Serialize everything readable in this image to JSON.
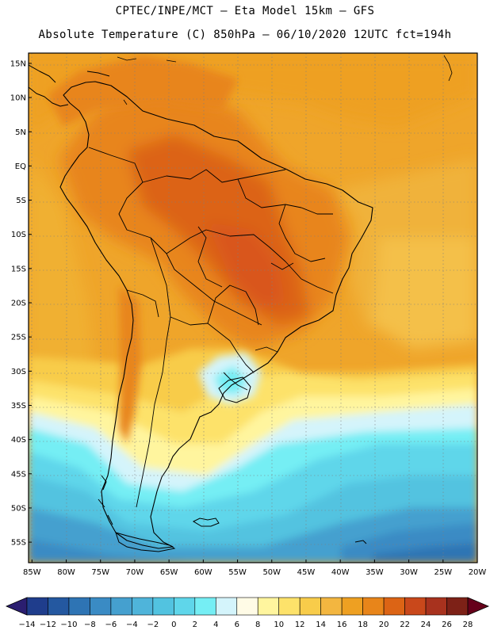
{
  "header": {
    "line1": "CPTEC/INPE/MCT –  Eta Model 15km – GFS",
    "line2": "Absolute Temperature (C) 850hPa – 06/10/2020 12UTC fct=194h"
  },
  "axes": {
    "lat_labels": [
      "15N",
      "10N",
      "5N",
      "EQ",
      "5S",
      "10S",
      "15S",
      "20S",
      "25S",
      "30S",
      "35S",
      "40S",
      "45S",
      "50S",
      "55S"
    ],
    "lat_values": [
      15,
      10,
      5,
      0,
      -5,
      -10,
      -15,
      -20,
      -25,
      -30,
      -35,
      -40,
      -45,
      -50,
      -55
    ],
    "lon_labels": [
      "85W",
      "80W",
      "75W",
      "70W",
      "65W",
      "60W",
      "55W",
      "50W",
      "45W",
      "40W",
      "35W",
      "30W",
      "25W",
      "20W"
    ],
    "lon_values": [
      -85,
      -80,
      -75,
      -70,
      -65,
      -60,
      -55,
      -50,
      -45,
      -40,
      -35,
      -30,
      -25,
      -20
    ],
    "lat_range": [
      -58,
      16.5
    ],
    "lon_range": [
      -85.5,
      -20
    ]
  },
  "colorbar": {
    "labels": [
      "-14",
      "-12",
      "-10",
      "-8",
      "-6",
      "-4",
      "-2",
      "0",
      "2",
      "4",
      "6",
      "8",
      "10",
      "12",
      "14",
      "16",
      "18",
      "20",
      "22",
      "24",
      "26",
      "28"
    ],
    "colors": [
      "#1f3d8c",
      "#2458a0",
      "#2e74b4",
      "#3a8bc4",
      "#45a0cf",
      "#4fb4da",
      "#52c3e0",
      "#5fd6ea",
      "#75eef4",
      "#d4f4fb",
      "#fffbe6",
      "#fff59e",
      "#fde26a",
      "#f8cc4a",
      "#f3b640",
      "#eea022",
      "#e8851a",
      "#dc6415",
      "#c9481b",
      "#a8321e",
      "#7d2117"
    ],
    "arrow_low": "#2b1e70",
    "arrow_high": "#66001a",
    "unit": "C"
  }
}
